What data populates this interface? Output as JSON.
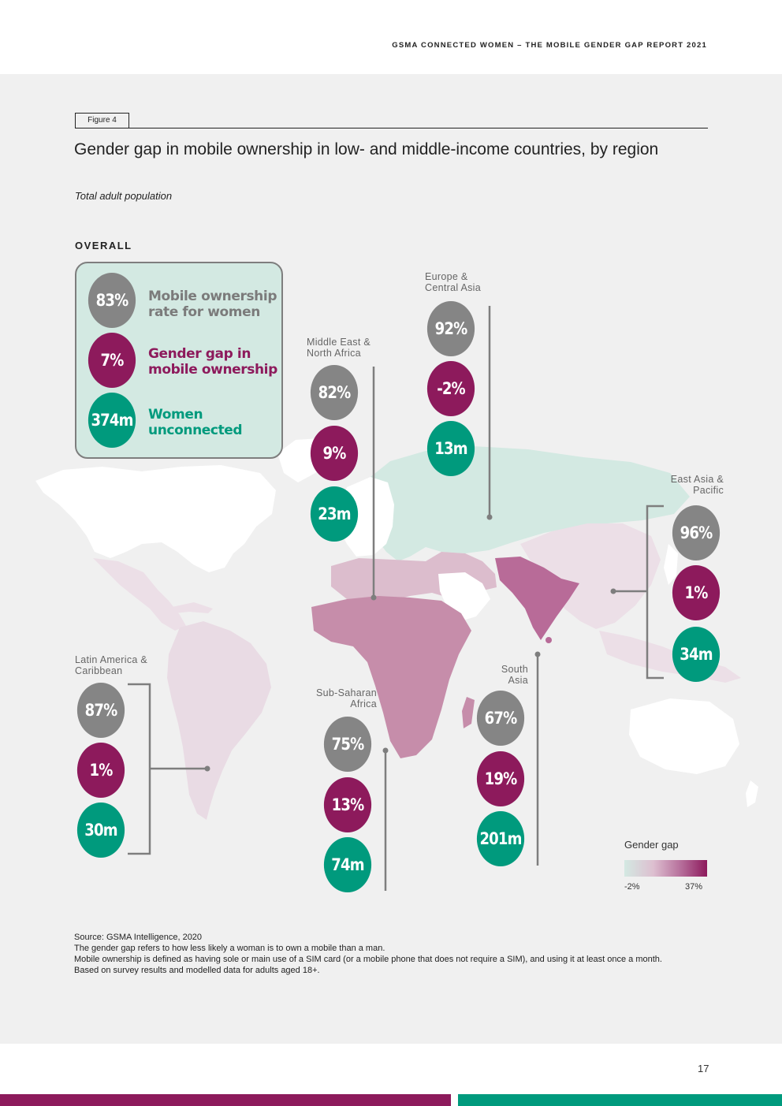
{
  "header": {
    "title": "GSMA CONNECTED WOMEN – THE MOBILE GENDER GAP REPORT 2021"
  },
  "figure": {
    "tag": "Figure 4",
    "title": "Gender gap in mobile ownership in low- and middle-income countries, by region",
    "subtitle": "Total adult population"
  },
  "overall": {
    "label": "OVERALL",
    "ownership_rate": "83%",
    "ownership_label": "Mobile ownership rate for women",
    "gender_gap": "7%",
    "gender_gap_label": "Gender gap in mobile ownership",
    "women_unconnected": "374m",
    "women_unconnected_label": "Women unconnected"
  },
  "regions": {
    "europe_central_asia": {
      "name": "Europe & Central Asia",
      "ownership": "92%",
      "gap": "-2%",
      "unconnected": "13m"
    },
    "middle_east_north_africa": {
      "name": "Middle East & North Africa",
      "ownership": "82%",
      "gap": "9%",
      "unconnected": "23m"
    },
    "east_asia_pacific": {
      "name": "East Asia & Pacific",
      "ownership": "96%",
      "gap": "1%",
      "unconnected": "34m"
    },
    "latin_america_caribbean": {
      "name": "Latin America & Caribbean",
      "ownership": "87%",
      "gap": "1%",
      "unconnected": "30m"
    },
    "sub_saharan_africa": {
      "name": "Sub-Saharan Africa",
      "ownership": "75%",
      "gap": "13%",
      "unconnected": "74m"
    },
    "south_asia": {
      "name": "South Asia",
      "ownership": "67%",
      "gap": "19%",
      "unconnected": "201m"
    }
  },
  "legend": {
    "title": "Gender gap",
    "min_label": "-2%",
    "max_label": "37%",
    "colors": {
      "min": "#d3e9e2",
      "max": "#8d1a5c"
    }
  },
  "notes": {
    "source": "Source: GSMA Intelligence, 2020",
    "line1": "The gender gap refers to how less likely a woman is to own a mobile than a man.",
    "line2": "Mobile ownership is defined as having sole or main use of a SIM card (or a mobile phone that does not require a SIM), and using it at least once a month.",
    "line3": "Based on survey results and modelled data for adults aged 18+."
  },
  "page_number": "17",
  "colors": {
    "grey": "#858585",
    "plum": "#8d1a5c",
    "teal": "#009a7d",
    "panel": "#f0f0f0"
  }
}
